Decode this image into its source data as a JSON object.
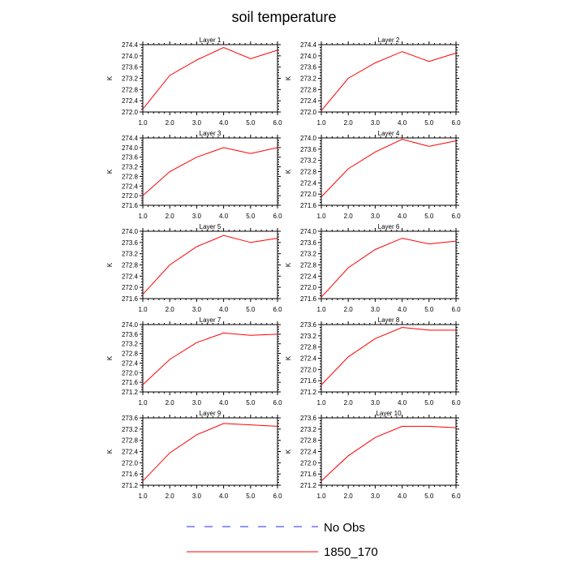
{
  "title": "soil temperature",
  "legend": {
    "items": [
      {
        "label": "No Obs",
        "color": "#2a2aff",
        "style": "dashed"
      },
      {
        "label": "1850_170",
        "color": "#ff0000",
        "style": "solid"
      }
    ]
  },
  "chart_data": [
    {
      "type": "line",
      "title": "Layer 1",
      "ylabel": "K",
      "xlim": [
        1,
        6
      ],
      "ylim": [
        272.0,
        274.4
      ],
      "x": [
        1,
        2,
        3,
        4,
        5,
        6
      ],
      "xticks": [
        "1.0",
        "2.0",
        "3.0",
        "4.0",
        "5.0",
        "6.0"
      ],
      "yticks": [
        "272.0",
        "272.4",
        "272.8",
        "273.2",
        "273.6",
        "274.0",
        "274.4"
      ],
      "series": [
        {
          "name": "1850_170",
          "values": [
            272.1,
            273.3,
            273.85,
            274.3,
            273.9,
            274.2
          ]
        }
      ]
    },
    {
      "type": "line",
      "title": "Layer 2",
      "ylabel": "K",
      "xlim": [
        1,
        6
      ],
      "ylim": [
        272.0,
        274.4
      ],
      "x": [
        1,
        2,
        3,
        4,
        5,
        6
      ],
      "xticks": [
        "1.0",
        "2.0",
        "3.0",
        "4.0",
        "5.0",
        "6.0"
      ],
      "yticks": [
        "272.0",
        "272.4",
        "272.8",
        "273.2",
        "273.6",
        "274.0",
        "274.4"
      ],
      "series": [
        {
          "name": "1850_170",
          "values": [
            272.05,
            273.2,
            273.75,
            274.15,
            273.8,
            274.1
          ]
        }
      ]
    },
    {
      "type": "line",
      "title": "Layer 3",
      "ylabel": "K",
      "xlim": [
        1,
        6
      ],
      "ylim": [
        271.6,
        274.4
      ],
      "x": [
        1,
        2,
        3,
        4,
        5,
        6
      ],
      "xticks": [
        "1.0",
        "2.0",
        "3.0",
        "4.0",
        "5.0",
        "6.0"
      ],
      "yticks": [
        "271.6",
        "272.0",
        "272.4",
        "272.8",
        "273.2",
        "273.6",
        "274.0",
        "274.4"
      ],
      "series": [
        {
          "name": "1850_170",
          "values": [
            272.0,
            273.0,
            273.6,
            274.0,
            273.75,
            274.0
          ]
        }
      ]
    },
    {
      "type": "line",
      "title": "Layer 4",
      "ylabel": "K",
      "xlim": [
        1,
        6
      ],
      "ylim": [
        271.6,
        274.0
      ],
      "x": [
        1,
        2,
        3,
        4,
        5,
        6
      ],
      "xticks": [
        "1.0",
        "2.0",
        "3.0",
        "4.0",
        "5.0",
        "6.0"
      ],
      "yticks": [
        "271.6",
        "272.0",
        "272.4",
        "272.8",
        "273.2",
        "273.6",
        "274.0"
      ],
      "series": [
        {
          "name": "1850_170",
          "values": [
            271.9,
            272.9,
            273.5,
            273.95,
            273.7,
            273.9
          ]
        }
      ]
    },
    {
      "type": "line",
      "title": "Layer 5",
      "ylabel": "K",
      "xlim": [
        1,
        6
      ],
      "ylim": [
        271.6,
        274.0
      ],
      "x": [
        1,
        2,
        3,
        4,
        5,
        6
      ],
      "xticks": [
        "1.0",
        "2.0",
        "3.0",
        "4.0",
        "5.0",
        "6.0"
      ],
      "yticks": [
        "271.6",
        "272.0",
        "272.4",
        "272.8",
        "273.2",
        "273.6",
        "274.0"
      ],
      "series": [
        {
          "name": "1850_170",
          "values": [
            271.75,
            272.8,
            273.45,
            273.85,
            273.6,
            273.75
          ]
        }
      ]
    },
    {
      "type": "line",
      "title": "Layer 6",
      "ylabel": "K",
      "xlim": [
        1,
        6
      ],
      "ylim": [
        271.6,
        274.0
      ],
      "x": [
        1,
        2,
        3,
        4,
        5,
        6
      ],
      "xticks": [
        "1.0",
        "2.0",
        "3.0",
        "4.0",
        "5.0",
        "6.0"
      ],
      "yticks": [
        "271.6",
        "272.0",
        "272.4",
        "272.8",
        "273.2",
        "273.6",
        "274.0"
      ],
      "series": [
        {
          "name": "1850_170",
          "values": [
            271.65,
            272.7,
            273.35,
            273.75,
            273.55,
            273.65
          ]
        }
      ]
    },
    {
      "type": "line",
      "title": "Layer 7",
      "ylabel": "K",
      "xlim": [
        1,
        6
      ],
      "ylim": [
        271.2,
        274.0
      ],
      "x": [
        1,
        2,
        3,
        4,
        5,
        6
      ],
      "xticks": [
        "1.0",
        "2.0",
        "3.0",
        "4.0",
        "5.0",
        "6.0"
      ],
      "yticks": [
        "271.2",
        "271.6",
        "272.0",
        "272.4",
        "272.8",
        "273.2",
        "273.6",
        "274.0"
      ],
      "series": [
        {
          "name": "1850_170",
          "values": [
            271.5,
            272.55,
            273.25,
            273.65,
            273.55,
            273.6
          ]
        }
      ]
    },
    {
      "type": "line",
      "title": "Layer 8",
      "ylabel": "K",
      "xlim": [
        1,
        6
      ],
      "ylim": [
        271.2,
        273.6
      ],
      "x": [
        1,
        2,
        3,
        4,
        5,
        6
      ],
      "xticks": [
        "1.0",
        "2.0",
        "3.0",
        "4.0",
        "5.0",
        "6.0"
      ],
      "yticks": [
        "271.2",
        "271.6",
        "272.0",
        "272.4",
        "272.8",
        "273.2",
        "273.6"
      ],
      "series": [
        {
          "name": "1850_170",
          "values": [
            271.45,
            272.45,
            273.1,
            273.5,
            273.4,
            273.4
          ]
        }
      ]
    },
    {
      "type": "line",
      "title": "Layer 9",
      "ylabel": "K",
      "xlim": [
        1,
        6
      ],
      "ylim": [
        271.2,
        273.6
      ],
      "x": [
        1,
        2,
        3,
        4,
        5,
        6
      ],
      "xticks": [
        "1.0",
        "2.0",
        "3.0",
        "4.0",
        "5.0",
        "6.0"
      ],
      "yticks": [
        "271.2",
        "271.6",
        "272.0",
        "272.4",
        "272.8",
        "273.2",
        "273.6"
      ],
      "series": [
        {
          "name": "1850_170",
          "values": [
            271.35,
            272.35,
            273.0,
            273.4,
            273.35,
            273.3
          ]
        }
      ]
    },
    {
      "type": "line",
      "title": "Layer 10",
      "ylabel": "K",
      "xlim": [
        1,
        6
      ],
      "ylim": [
        271.2,
        273.6
      ],
      "x": [
        1,
        2,
        3,
        4,
        5,
        6
      ],
      "xticks": [
        "1.0",
        "2.0",
        "3.0",
        "4.0",
        "5.0",
        "6.0"
      ],
      "yticks": [
        "271.2",
        "271.6",
        "272.0",
        "272.4",
        "272.8",
        "273.2",
        "273.6"
      ],
      "series": [
        {
          "name": "1850_170",
          "values": [
            271.35,
            272.25,
            272.9,
            273.3,
            273.3,
            273.25
          ]
        }
      ]
    }
  ]
}
